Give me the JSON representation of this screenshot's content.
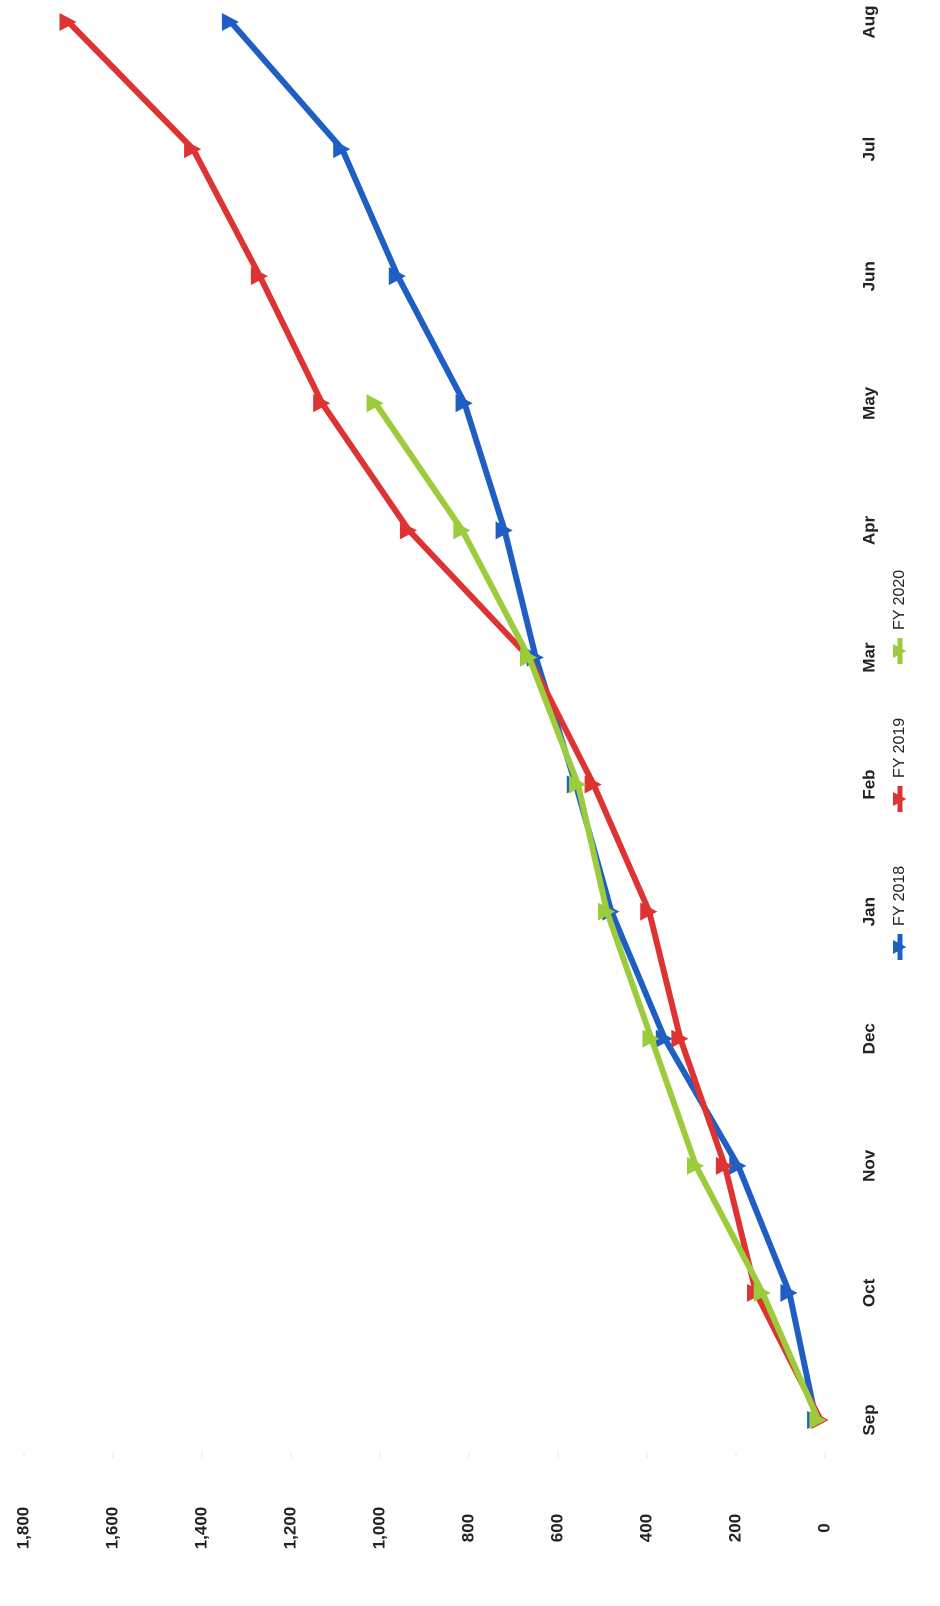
{
  "chart_data": {
    "type": "line",
    "categories": [
      "Sep",
      "Oct",
      "Nov",
      "Dec",
      "Jan",
      "Feb",
      "Mar",
      "Apr",
      "May",
      "Jun",
      "Jul",
      "Aug"
    ],
    "series": [
      {
        "name": "FY 2018",
        "color": "#1f5fc4",
        "values": [
          20,
          80,
          195,
          360,
          480,
          560,
          650,
          720,
          810,
          960,
          1085,
          1335
        ]
      },
      {
        "name": "FY 2019",
        "color": "#dd3333",
        "values": [
          10,
          155,
          225,
          325,
          395,
          520,
          665,
          935,
          1130,
          1270,
          1420,
          1700
        ]
      },
      {
        "name": "FY 2020",
        "color": "#9ccc3c",
        "values": [
          15,
          140,
          290,
          390,
          490,
          555,
          665,
          815,
          1010,
          null,
          null,
          null
        ]
      }
    ],
    "ylim": [
      0,
      1800
    ],
    "yticks": [
      0,
      200,
      400,
      600,
      800,
      {
        "value": 1000,
        "label": "1,000"
      },
      {
        "value": 1200,
        "label": "1,200"
      },
      {
        "value": 1400,
        "label": "1,400"
      },
      {
        "value": 1600,
        "label": "1,600"
      },
      {
        "value": 1800,
        "label": "1,800"
      }
    ],
    "legend": "bottom"
  }
}
